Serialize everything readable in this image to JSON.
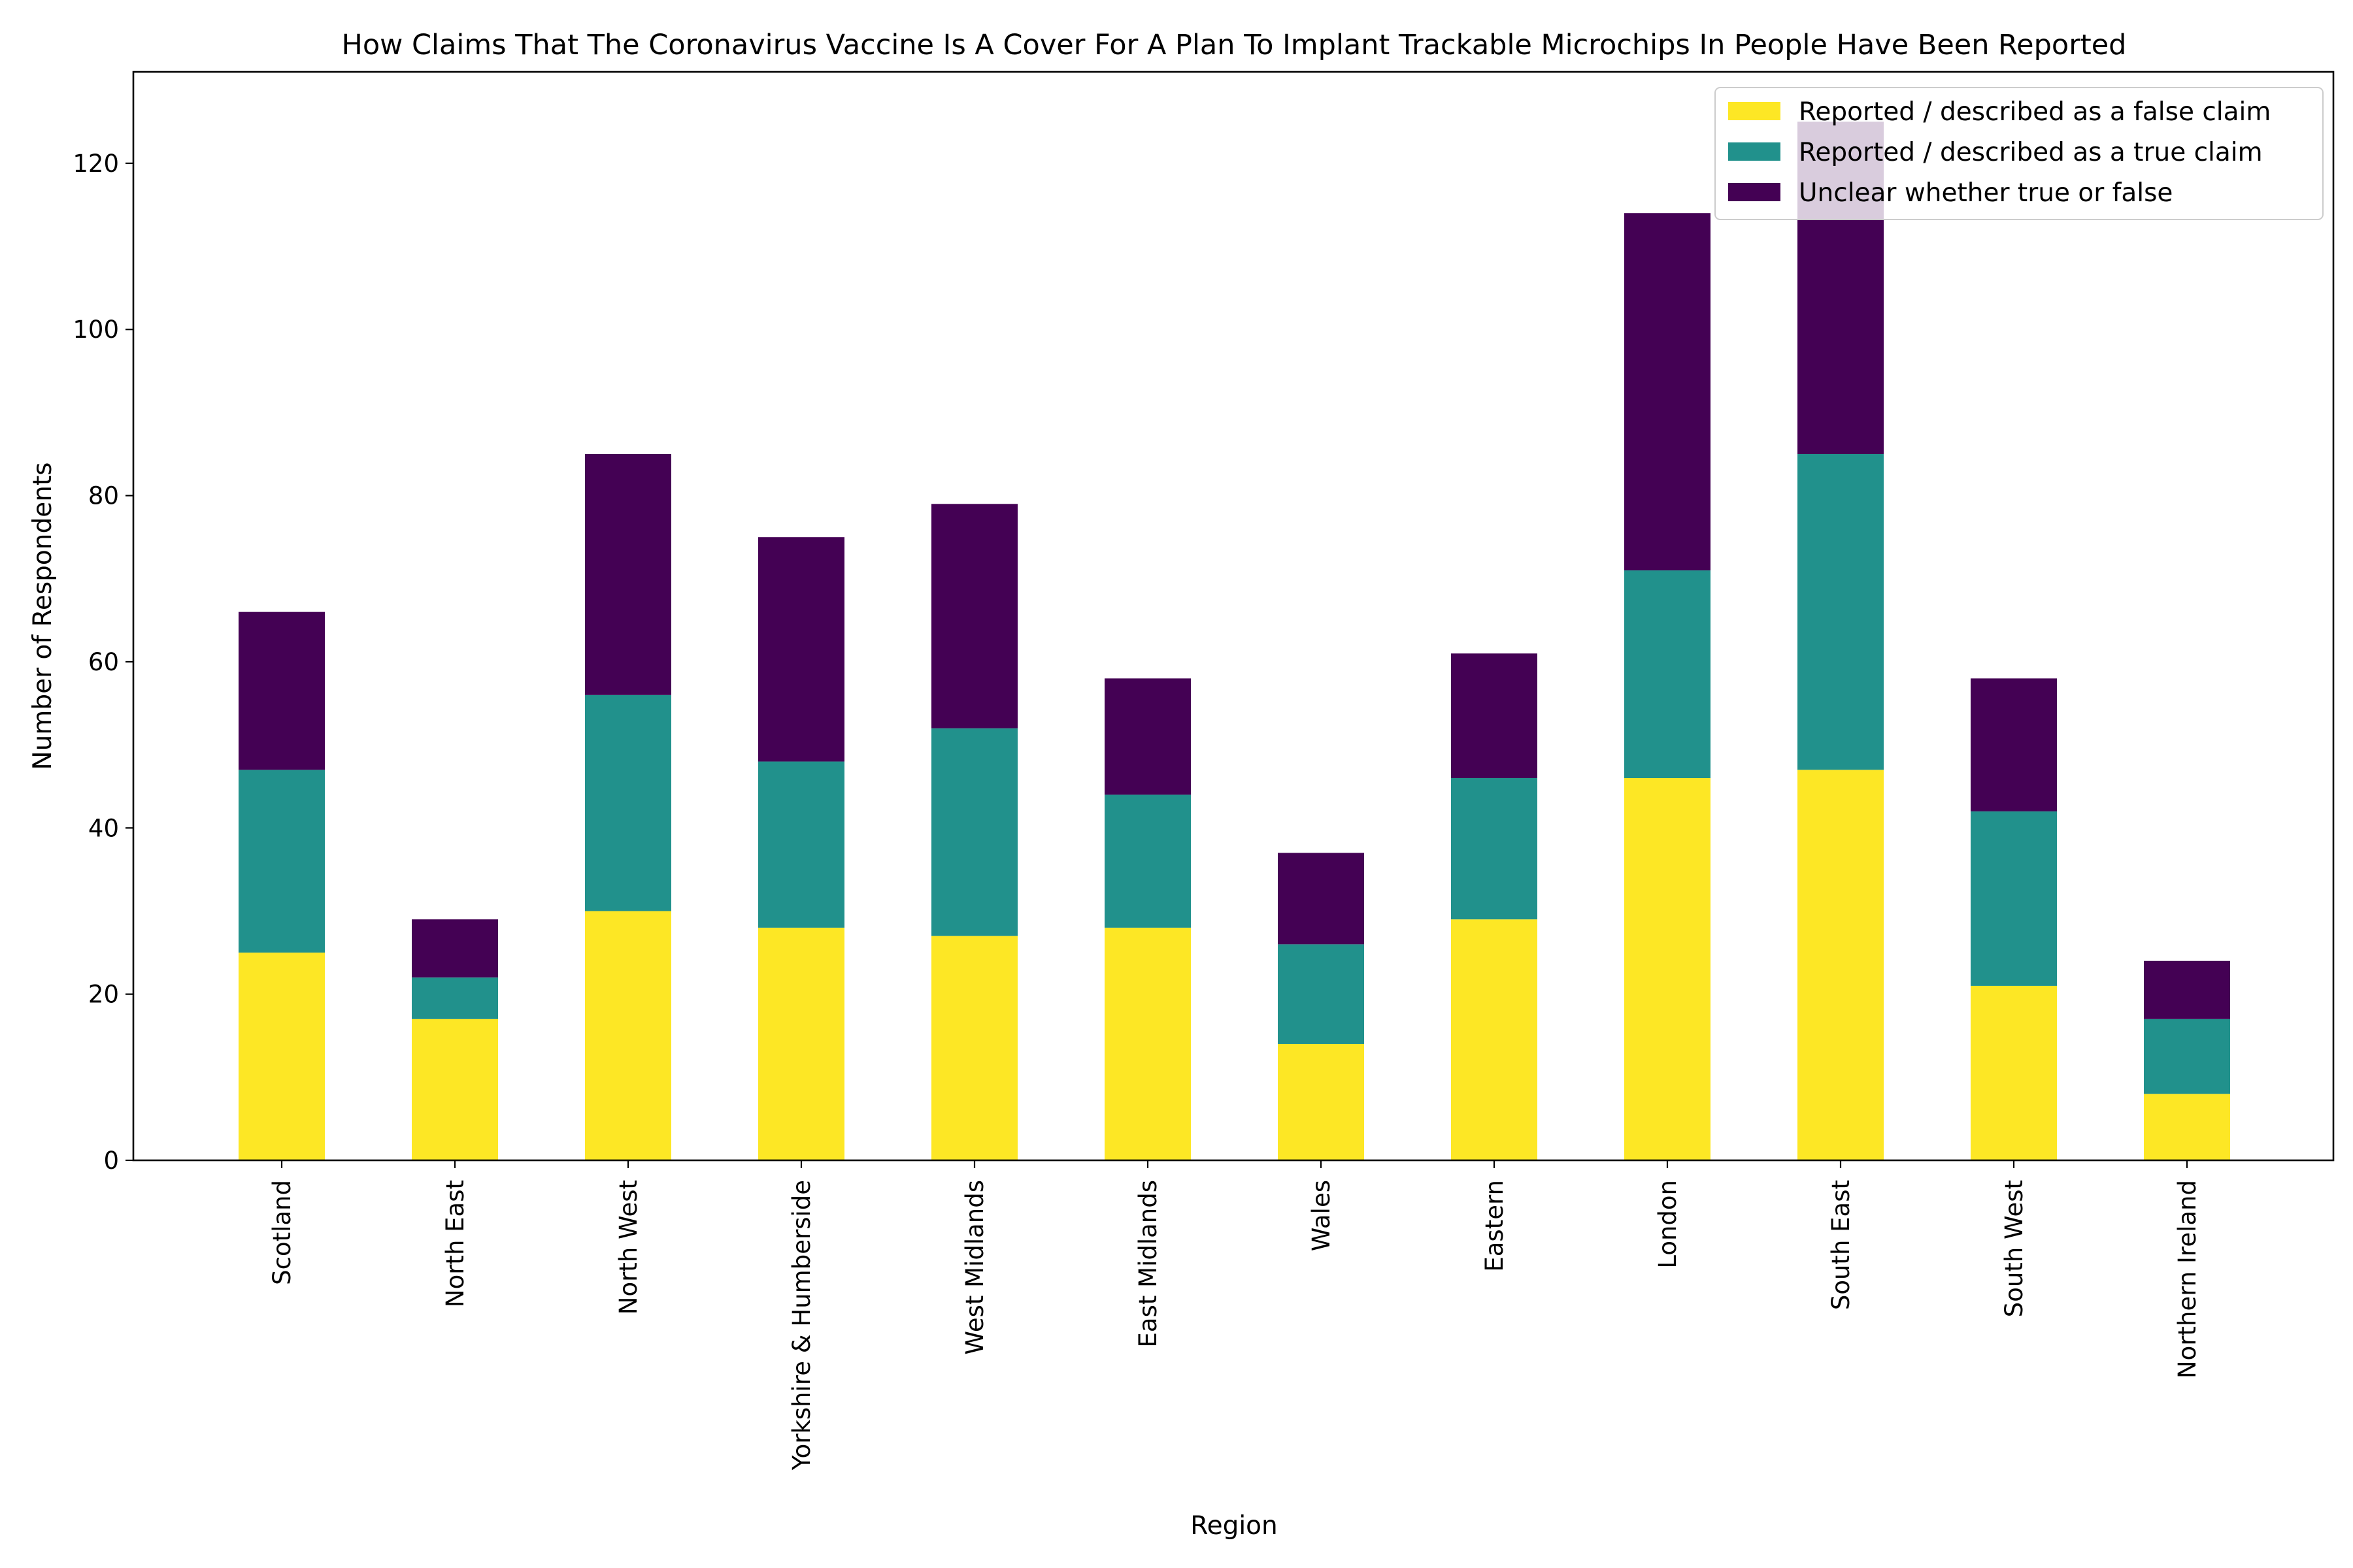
{
  "chart_data": {
    "type": "bar",
    "stacked": true,
    "title": "How Claims That The Coronavirus Vaccine Is A Cover For A Plan To Implant Trackable Microchips In People Have Been Reported",
    "xlabel": "Region",
    "ylabel": "Number of Respondents",
    "ylim": [
      0,
      131
    ],
    "yticks": [
      0,
      20,
      40,
      60,
      80,
      100,
      120
    ],
    "grid": false,
    "legend_position": "top-right",
    "categories": [
      "Scotland",
      "North East",
      "North West",
      "Yorkshire & Humberside",
      "West Midlands",
      "East Midlands",
      "Wales",
      "Eastern",
      "London",
      "South East",
      "South West",
      "Northern Ireland"
    ],
    "series": [
      {
        "name": "Reported / described as a false claim",
        "color": "#fde725",
        "values": [
          25,
          17,
          30,
          28,
          27,
          28,
          14,
          29,
          46,
          47,
          21,
          8
        ]
      },
      {
        "name": "Reported / described as a true claim",
        "color": "#21918c",
        "values": [
          22,
          5,
          26,
          20,
          25,
          16,
          12,
          17,
          25,
          38,
          21,
          9
        ]
      },
      {
        "name": "Unclear whether true or false",
        "color": "#440154",
        "values": [
          19,
          7,
          29,
          27,
          27,
          14,
          11,
          15,
          43,
          40,
          16,
          7
        ]
      }
    ]
  }
}
